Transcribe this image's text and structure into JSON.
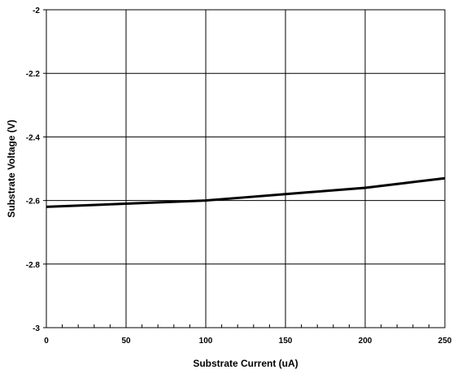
{
  "chart_data": {
    "type": "line",
    "title": "",
    "xlabel": "Substrate Current (uA)",
    "ylabel": "Substrate Voltage (V)",
    "xlim": [
      0,
      250
    ],
    "ylim": [
      -3,
      -2
    ],
    "x_ticks": [
      "0",
      "50",
      "100",
      "150",
      "200",
      "250"
    ],
    "y_ticks": [
      "-2",
      "-2.2",
      "-2.4",
      "-2.6",
      "-2.8",
      "-3"
    ],
    "x_tick_values": [
      0,
      50,
      100,
      150,
      200,
      250
    ],
    "y_tick_values": [
      -2,
      -2.2,
      -2.4,
      -2.6,
      -2.8,
      -3
    ],
    "x_minor_step": 10,
    "grid": true,
    "series": [
      {
        "color": "#000000",
        "x": [
          0,
          50,
          100,
          125,
          150,
          200,
          225,
          250
        ],
        "y": [
          -2.62,
          -2.61,
          -2.6,
          -2.59,
          -2.58,
          -2.56,
          -2.545,
          -2.53
        ]
      }
    ]
  }
}
